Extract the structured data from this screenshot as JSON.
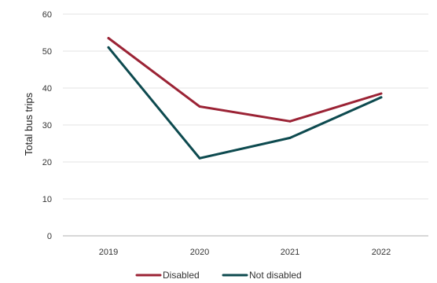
{
  "chart_data": {
    "type": "line",
    "title": "",
    "xlabel": "",
    "ylabel": "Total bus trips",
    "categories": [
      "2019",
      "2020",
      "2021",
      "2022"
    ],
    "ylim": [
      0,
      60
    ],
    "yticks": [
      0,
      10,
      20,
      30,
      40,
      50,
      60
    ],
    "grid": true,
    "legend_position": "bottom",
    "series": [
      {
        "name": "Disabled",
        "color": "#9b2335",
        "values": [
          53.5,
          35,
          31,
          38.5
        ]
      },
      {
        "name": "Not disabled",
        "color": "#0d4a4f",
        "values": [
          51,
          21,
          26.5,
          37.5
        ]
      }
    ]
  }
}
